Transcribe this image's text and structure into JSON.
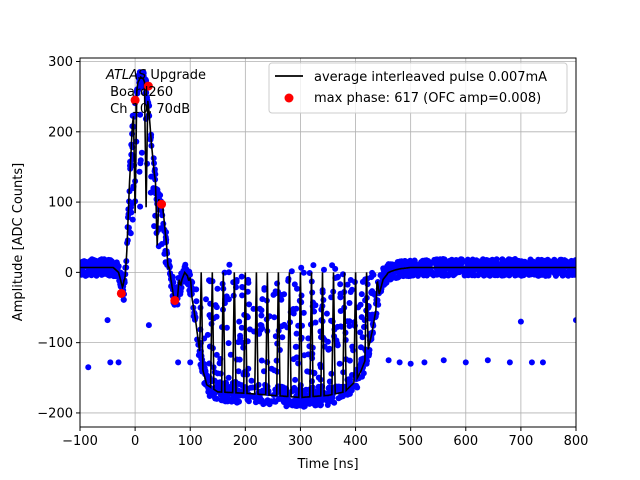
{
  "chart_data": {
    "type": "line",
    "title": "",
    "xlabel": "Time [ns]",
    "ylabel": "Amplitude [ADC Counts]",
    "xlim": [
      -100,
      800
    ],
    "ylim": [
      -220,
      305
    ],
    "xticks": [
      -100,
      0,
      100,
      200,
      300,
      400,
      500,
      600,
      700,
      800
    ],
    "xtick_labels": [
      "−100",
      "0",
      "100",
      "200",
      "300",
      "400",
      "500",
      "600",
      "700",
      "800"
    ],
    "yticks": [
      -200,
      -100,
      0,
      100,
      200,
      300
    ],
    "ytick_labels": [
      "−200",
      "−100",
      "0",
      "100",
      "200",
      "300"
    ],
    "grid": true,
    "annotation": {
      "line1_italic": "ATLAS",
      "line1_rest": " Upgrade",
      "line2": "Board260",
      "line3": "Ch 10, 70dB"
    },
    "legend": {
      "placement": "top-right",
      "entries": [
        {
          "label": "average interleaved pulse 0.007mA",
          "style": "line",
          "color": "#000000"
        },
        {
          "label": "max phase: 617 (OFC amp=0.008)",
          "style": "marker",
          "color": "#ff0000"
        }
      ]
    },
    "series": [
      {
        "name": "average interleaved pulse 0.007mA",
        "style": "line",
        "color": "#000000",
        "envelope_x": [
          -100,
          -40,
          -30,
          -20,
          -15,
          -10,
          -5,
          0,
          5,
          10,
          15,
          20,
          25,
          30,
          35,
          40,
          45,
          50,
          55,
          60,
          65,
          70,
          75,
          80,
          85,
          90,
          95,
          100,
          110,
          120,
          130,
          150,
          200,
          250,
          300,
          350,
          380,
          400,
          410,
          420,
          430,
          440,
          450,
          460,
          470,
          480,
          500,
          550,
          600,
          700,
          800
        ],
        "envelope_y": [
          7,
          7,
          0,
          -30,
          30,
          130,
          210,
          240,
          270,
          278,
          275,
          265,
          230,
          180,
          140,
          110,
          100,
          95,
          55,
          20,
          -10,
          -35,
          -40,
          -30,
          -10,
          0,
          -5,
          -20,
          -70,
          -130,
          -160,
          -170,
          -172,
          -175,
          -178,
          -175,
          -170,
          -155,
          -140,
          -120,
          -85,
          -40,
          -10,
          0,
          3,
          5,
          7,
          7,
          7,
          7,
          7
        ],
        "oscillation": "interleaved baseline spikes between envelope and 0 every ~20 ns"
      },
      {
        "name": "interleaved samples",
        "style": "scatter",
        "color": "#0000ff",
        "outliers": [
          {
            "x": -85,
            "y": -135
          },
          {
            "x": -45,
            "y": -128
          },
          {
            "x": -30,
            "y": -128
          },
          {
            "x": -50,
            "y": -68
          },
          {
            "x": 25,
            "y": -75
          },
          {
            "x": 78,
            "y": -128
          },
          {
            "x": 100,
            "y": -128
          },
          {
            "x": 420,
            "y": -120
          },
          {
            "x": 460,
            "y": -125
          },
          {
            "x": 480,
            "y": -128
          },
          {
            "x": 500,
            "y": -130
          },
          {
            "x": 525,
            "y": -128
          },
          {
            "x": 560,
            "y": -125
          },
          {
            "x": 600,
            "y": -128
          },
          {
            "x": 640,
            "y": -125
          },
          {
            "x": 700,
            "y": -70
          },
          {
            "x": 680,
            "y": -128
          },
          {
            "x": 720,
            "y": -128
          },
          {
            "x": 740,
            "y": -128
          },
          {
            "x": 800,
            "y": -68
          }
        ]
      },
      {
        "name": "max phase: 617 (OFC amp=0.008)",
        "style": "marker",
        "color": "#ff0000",
        "x": [
          -25,
          0,
          24,
          48,
          72
        ],
        "y": [
          -30,
          245,
          265,
          97,
          -40
        ]
      }
    ]
  }
}
